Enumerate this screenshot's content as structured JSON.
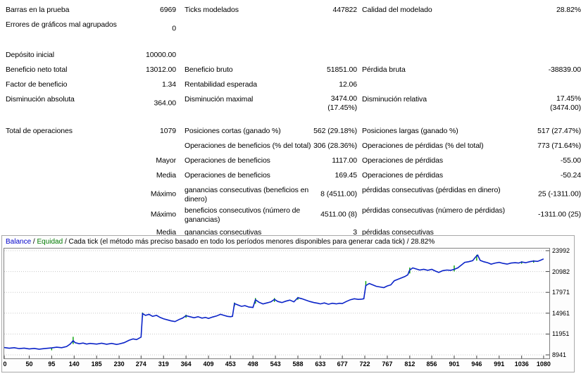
{
  "report": {
    "rows": [
      {
        "c1": "Barras en la prueba",
        "c2": "6969",
        "c3": "Ticks modelados",
        "c4": "447822",
        "c5": "Calidad del modelado",
        "c6": "28.82%"
      },
      {
        "c1": "Errores de gráficos mal agrupados",
        "c2": "0",
        "c3": "",
        "c4": "",
        "c5": "",
        "c6": ""
      },
      {
        "c1": "Depósito inicial",
        "c2": "10000.00",
        "c3": "",
        "c4": "",
        "c5": "",
        "c6": ""
      },
      {
        "c1": "Beneficio neto total",
        "c2": "13012.00",
        "c3": "Beneficio bruto",
        "c4": "51851.00",
        "c5": "Pérdida bruta",
        "c6": "-38839.00"
      },
      {
        "c1": "Factor de beneficio",
        "c2": "1.34",
        "c3": "Rentabilidad esperada",
        "c4": "12.06",
        "c5": "",
        "c6": ""
      },
      {
        "c1": "Disminución absoluta",
        "c2": "364.00",
        "c3": "Disminución maximal",
        "c4": "3474.00\n(17.45%)",
        "c5": "Disminución relativa",
        "c6": "17.45%\n(3474.00)"
      },
      {
        "c1": "Total de operaciones",
        "c2": "1079",
        "c3": "Posiciones cortas (ganado %)",
        "c4": "562 (29.18%)",
        "c5": "Posiciones largas (ganado %)",
        "c6": "517 (27.47%)"
      },
      {
        "c1": "",
        "c2": "",
        "c3": "Operaciones de beneficios (% del total)",
        "c4": "306 (28.36%)",
        "c5": "Operaciones de pérdidas (% del total)",
        "c6": "773 (71.64%)"
      },
      {
        "c1": "",
        "c2": "Mayor",
        "c3": "Operaciones de beneficios",
        "c4": "1117.00",
        "c5": "Operaciones de pérdidas",
        "c6": "-55.00"
      },
      {
        "c1": "",
        "c2": "Media",
        "c3": "Operaciones de beneficios",
        "c4": "169.45",
        "c5": "Operaciones de pérdidas",
        "c6": "-50.24"
      },
      {
        "c1": "",
        "c2": "Máximo",
        "c3": "ganancias consecutivas (beneficios en dinero)",
        "c4": "8 (4511.00)",
        "c5": "pérdidas consecutivas (pérdidas en dinero)",
        "c6": "25 (-1311.00)"
      },
      {
        "c1": "",
        "c2": "Máximo",
        "c3": "beneficios consecutivos (número de ganancias)",
        "c4": "4511.00 (8)",
        "c5": "pérdidas consecutivas (número de pérdidas)",
        "c6": "-1311.00 (25)"
      },
      {
        "c1": "",
        "c2": "Media",
        "c3": "ganancias consecutivas",
        "c4": "3",
        "c5": "pérdidas consecutivas",
        "c6": ""
      }
    ]
  },
  "chart": {
    "header": {
      "balance": "Balance",
      "sep1": " / ",
      "equity": "Equidad",
      "rest": " / Cada tick (el método más preciso basado en todo los períodos menores disponibles para generar cada tick)  / 28.82%"
    }
  },
  "chart_data": {
    "type": "line",
    "title": "Balance / Equidad",
    "modelling_quality": "28.82%",
    "legend_position": "top-left",
    "grid": "horizontal-dotted",
    "axis": {
      "xmax": 1090,
      "ymin": 8941,
      "ymax": 23992
    },
    "yticks": [
      23992,
      20982,
      17971,
      14961,
      11951,
      8941
    ],
    "xticks": [
      0,
      50,
      95,
      140,
      185,
      230,
      274,
      319,
      364,
      409,
      453,
      498,
      543,
      588,
      633,
      677,
      722,
      767,
      812,
      856,
      901,
      946,
      991,
      1036,
      1080
    ],
    "colors": {
      "balance": "#0a23c8",
      "equity": "#00a000",
      "grid": "#c8c8c8",
      "axis": "#808080"
    },
    "series": [
      {
        "name": "Balance",
        "points": [
          [
            0,
            10000
          ],
          [
            10,
            9900
          ],
          [
            20,
            9980
          ],
          [
            30,
            9850
          ],
          [
            40,
            9920
          ],
          [
            50,
            9800
          ],
          [
            60,
            9880
          ],
          [
            70,
            9760
          ],
          [
            80,
            9850
          ],
          [
            95,
            9950
          ],
          [
            105,
            10050
          ],
          [
            115,
            9980
          ],
          [
            125,
            10150
          ],
          [
            132,
            10500
          ],
          [
            138,
            11000
          ],
          [
            142,
            10700
          ],
          [
            150,
            10550
          ],
          [
            158,
            10650
          ],
          [
            165,
            10500
          ],
          [
            172,
            10600
          ],
          [
            185,
            10500
          ],
          [
            195,
            10620
          ],
          [
            205,
            10480
          ],
          [
            215,
            10600
          ],
          [
            225,
            10450
          ],
          [
            230,
            10520
          ],
          [
            240,
            10700
          ],
          [
            250,
            11050
          ],
          [
            258,
            11250
          ],
          [
            265,
            11150
          ],
          [
            270,
            11350
          ],
          [
            274,
            11500
          ],
          [
            277,
            14900
          ],
          [
            283,
            14650
          ],
          [
            290,
            14800
          ],
          [
            297,
            14500
          ],
          [
            305,
            14650
          ],
          [
            312,
            14350
          ],
          [
            319,
            14150
          ],
          [
            327,
            14000
          ],
          [
            334,
            13850
          ],
          [
            342,
            13750
          ],
          [
            350,
            14050
          ],
          [
            357,
            14250
          ],
          [
            364,
            14600
          ],
          [
            372,
            14450
          ],
          [
            380,
            14300
          ],
          [
            388,
            14450
          ],
          [
            396,
            14250
          ],
          [
            403,
            14350
          ],
          [
            409,
            14200
          ],
          [
            417,
            14400
          ],
          [
            425,
            14550
          ],
          [
            433,
            14800
          ],
          [
            440,
            14650
          ],
          [
            447,
            14500
          ],
          [
            453,
            14450
          ],
          [
            457,
            14500
          ],
          [
            461,
            16350
          ],
          [
            468,
            16150
          ],
          [
            475,
            15950
          ],
          [
            482,
            16050
          ],
          [
            490,
            15850
          ],
          [
            498,
            15800
          ],
          [
            503,
            16900
          ],
          [
            510,
            16550
          ],
          [
            518,
            16300
          ],
          [
            526,
            16450
          ],
          [
            534,
            16600
          ],
          [
            541,
            16950
          ],
          [
            548,
            16650
          ],
          [
            556,
            16500
          ],
          [
            564,
            16700
          ],
          [
            572,
            16850
          ],
          [
            580,
            16600
          ],
          [
            588,
            17200
          ],
          [
            596,
            17050
          ],
          [
            604,
            16850
          ],
          [
            612,
            16650
          ],
          [
            620,
            16500
          ],
          [
            628,
            16400
          ],
          [
            633,
            16300
          ],
          [
            641,
            16450
          ],
          [
            649,
            16250
          ],
          [
            657,
            16400
          ],
          [
            665,
            16300
          ],
          [
            671,
            16400
          ],
          [
            677,
            16350
          ],
          [
            685,
            16650
          ],
          [
            693,
            16900
          ],
          [
            701,
            17050
          ],
          [
            709,
            16950
          ],
          [
            716,
            17000
          ],
          [
            720,
            17050
          ],
          [
            724,
            18950
          ],
          [
            731,
            19250
          ],
          [
            738,
            19050
          ],
          [
            745,
            18850
          ],
          [
            752,
            18750
          ],
          [
            760,
            18650
          ],
          [
            767,
            18900
          ],
          [
            774,
            19050
          ],
          [
            781,
            19650
          ],
          [
            788,
            19850
          ],
          [
            795,
            20050
          ],
          [
            802,
            20250
          ],
          [
            808,
            20500
          ],
          [
            812,
            21200
          ],
          [
            818,
            21500
          ],
          [
            825,
            21350
          ],
          [
            832,
            21200
          ],
          [
            840,
            21300
          ],
          [
            848,
            21150
          ],
          [
            856,
            21300
          ],
          [
            863,
            21050
          ],
          [
            870,
            20850
          ],
          [
            878,
            21100
          ],
          [
            886,
            21200
          ],
          [
            894,
            21150
          ],
          [
            901,
            21300
          ],
          [
            908,
            21500
          ],
          [
            915,
            21900
          ],
          [
            922,
            22300
          ],
          [
            930,
            22400
          ],
          [
            938,
            22550
          ],
          [
            944,
            23100
          ],
          [
            948,
            23350
          ],
          [
            953,
            22600
          ],
          [
            960,
            22400
          ],
          [
            968,
            22250
          ],
          [
            975,
            22050
          ],
          [
            983,
            22200
          ],
          [
            991,
            22300
          ],
          [
            999,
            22150
          ],
          [
            1007,
            22050
          ],
          [
            1015,
            22200
          ],
          [
            1023,
            22250
          ],
          [
            1030,
            22200
          ],
          [
            1036,
            22350
          ],
          [
            1044,
            22250
          ],
          [
            1052,
            22400
          ],
          [
            1060,
            22500
          ],
          [
            1068,
            22450
          ],
          [
            1075,
            22650
          ],
          [
            1080,
            22800
          ]
        ]
      },
      {
        "name": "Equidad",
        "spikes": [
          [
            95,
            9600,
            10000
          ],
          [
            138,
            10500,
            11550
          ],
          [
            277,
            14400,
            15050
          ],
          [
            364,
            14300,
            14750
          ],
          [
            461,
            15950,
            16500
          ],
          [
            503,
            16350,
            17150
          ],
          [
            541,
            16600,
            17150
          ],
          [
            588,
            16900,
            17300
          ],
          [
            724,
            18800,
            19600
          ],
          [
            812,
            20700,
            21550
          ],
          [
            901,
            21000,
            21850
          ],
          [
            946,
            22550,
            23400
          ],
          [
            1036,
            22100,
            22450
          ],
          [
            1060,
            22250,
            22600
          ]
        ]
      }
    ]
  }
}
